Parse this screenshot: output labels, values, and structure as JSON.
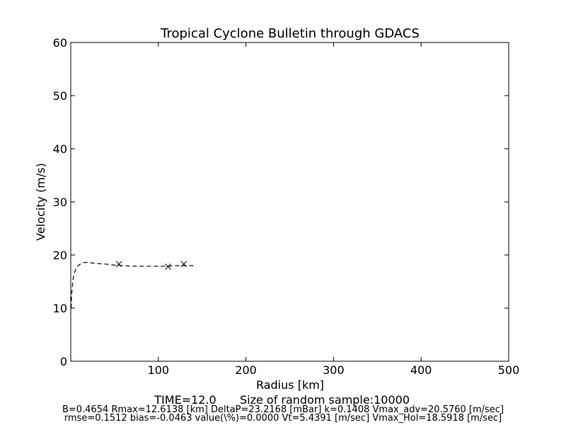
{
  "chart_data": {
    "type": "line",
    "title": "Tropical Cyclone Bulletin through GDACS",
    "xlabel": "Radius [km]",
    "ylabel": "Velocity (m/s)",
    "xlim": [
      0,
      500
    ],
    "ylim": [
      0,
      60
    ],
    "xticks": [
      100,
      200,
      300,
      400,
      500
    ],
    "yticks": [
      0,
      10,
      20,
      30,
      40,
      50,
      60
    ],
    "grid": false,
    "series": [
      {
        "style": "dashed",
        "x": [
          0.5,
          1,
          2,
          3,
          4,
          6,
          8,
          10,
          13,
          16,
          20,
          25,
          30,
          40,
          50,
          60,
          70,
          80,
          90,
          100,
          110,
          120,
          130,
          140,
          142
        ],
        "y": [
          10,
          12.5,
          14.5,
          15.8,
          16.6,
          17.4,
          17.9,
          18.2,
          18.5,
          18.6,
          18.6,
          18.5,
          18.4,
          18.3,
          18.1,
          18.0,
          17.9,
          17.9,
          17.9,
          17.9,
          17.9,
          18.0,
          18.0,
          18.0,
          18.0
        ]
      },
      {
        "style": "markers",
        "marker": "x",
        "x": [
          55,
          111,
          129
        ],
        "y": [
          18.3,
          17.8,
          18.3
        ]
      }
    ]
  },
  "footer": {
    "line1_time": "TIME=12.0",
    "line1_sample": "Size of random sample:10000",
    "line2": "B=0.4654 Rmax=12.6138 [km]  DeltaP=23.2168 [mBar] k=0.1408 Vmax_adv=20.5760 [m/sec]",
    "line3": "rmse=0.1512 bias=-0.0463 value(\\%)=0.0000 Vt=5.4391 [m/sec] Vmax_Hol=18.5918 [m/sec]"
  }
}
